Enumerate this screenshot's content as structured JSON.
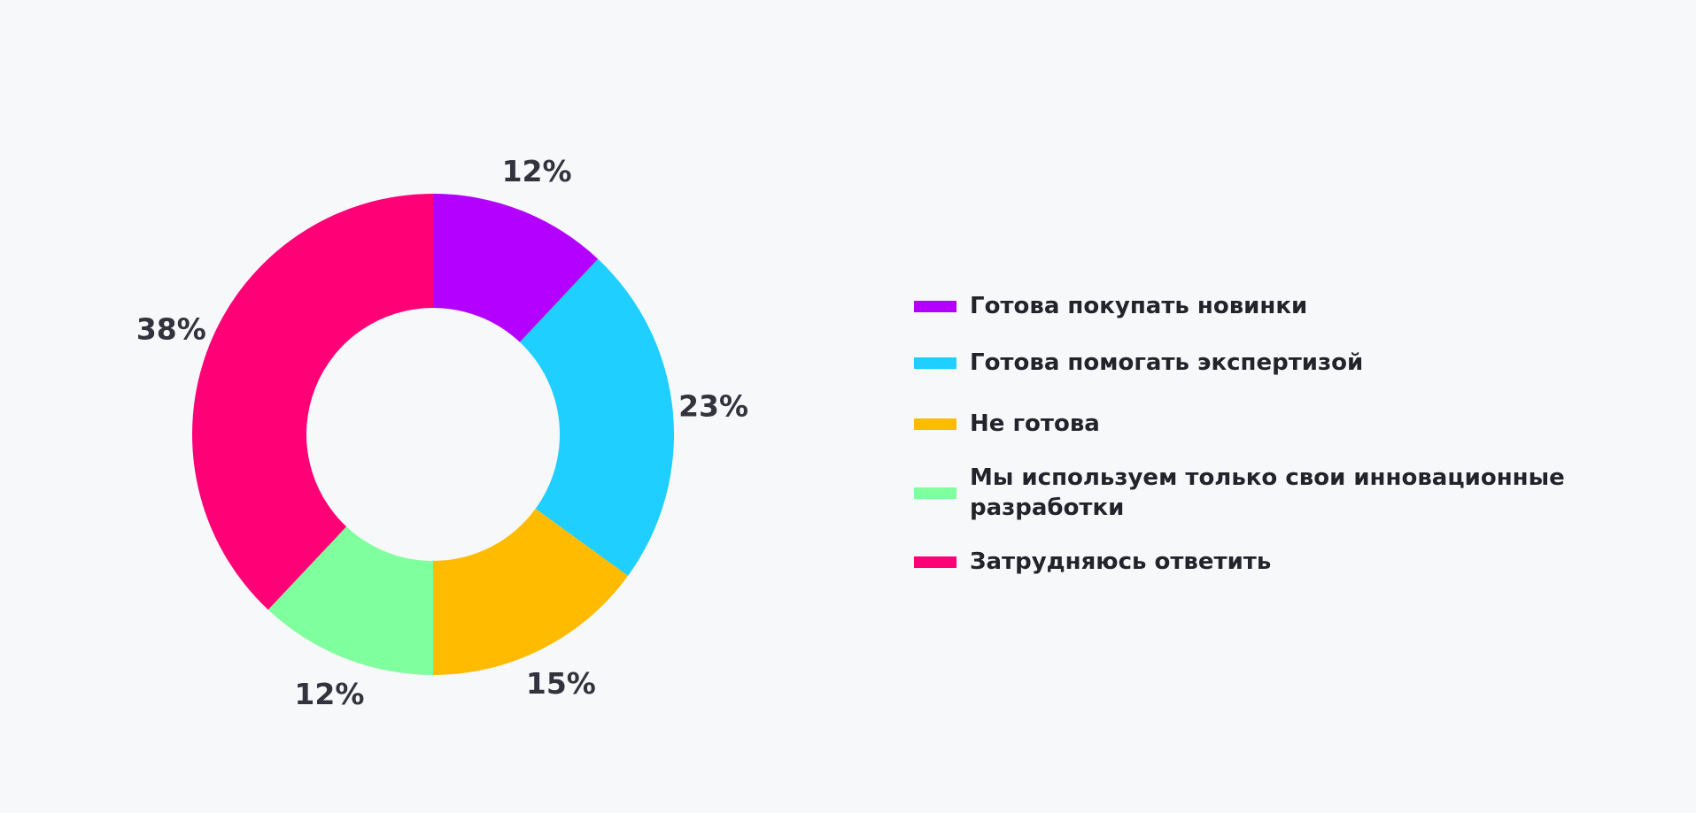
{
  "chart_data": {
    "type": "donut",
    "categories": [
      "Готова покупать новинки",
      "Готова помогать экспертизой",
      "Не готова",
      "Мы используем только свои инновационные разработки",
      "Затрудняюсь ответить"
    ],
    "values": [
      12,
      23,
      15,
      12,
      38
    ],
    "value_labels": [
      "12%",
      "23%",
      "15%",
      "12%",
      "38%"
    ],
    "colors": [
      "#b300ff",
      "#1ecfff",
      "#ffbb00",
      "#80ff9e",
      "#ff0077"
    ],
    "legend": "right"
  }
}
